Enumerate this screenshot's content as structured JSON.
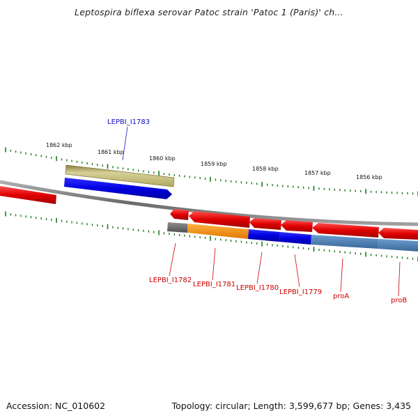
{
  "title": "Leptospira biflexa serovar Patoc strain 'Patoc 1 (Paris)' ch...",
  "footer": {
    "accession": "Accession: NC_010602",
    "summary": "Topology: circular; Length: 3,599,677 bp; Genes: 3,435"
  },
  "ruler": {
    "labels": [
      "1862 kbp",
      "1861 kbp",
      "1860 kbp",
      "1859 kbp",
      "1858 kbp",
      "1857 kbp",
      "1856 kbp"
    ]
  },
  "genes": {
    "top_label": "LEPBI_I1783",
    "bottom_labels": [
      "LEPBI_I1782",
      "LEPBI_I1781",
      "LEPBI_I1780",
      "LEPBI_I1779",
      "proA",
      "proB"
    ]
  },
  "colors": {
    "forward_cds": "#e00000",
    "backbone": "#888888",
    "ruler_tick": "#1a7a1a",
    "label_top": "#1010c0",
    "label_bottom": "#cc0000",
    "olive": "#c8c080",
    "blue": "#0000e0",
    "orange": "#ff8c00",
    "steel": "#4a7fb0",
    "gray": "#606060"
  }
}
